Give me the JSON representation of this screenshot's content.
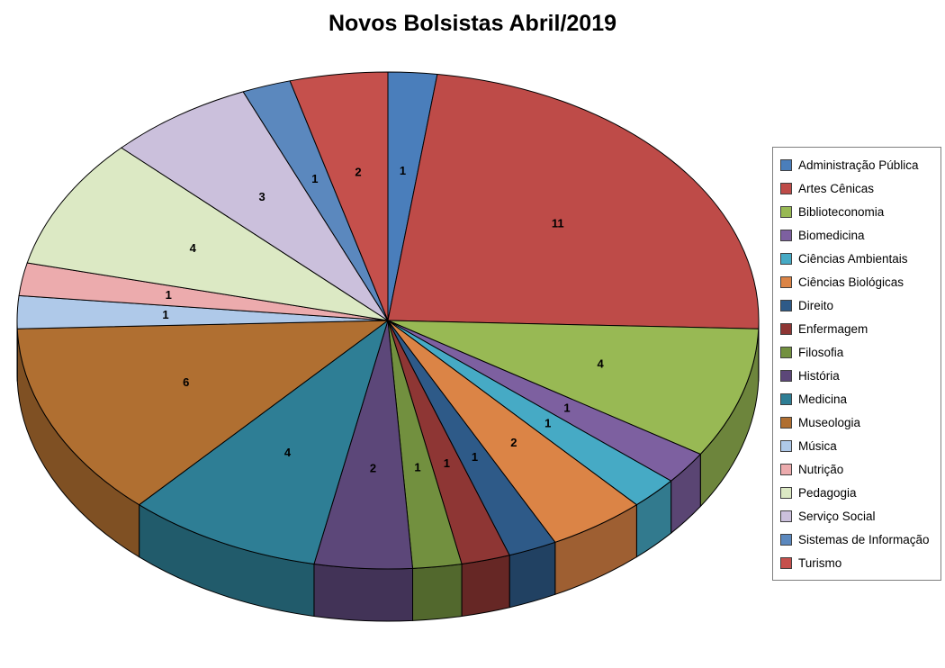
{
  "chart_data": {
    "type": "pie",
    "is_3d": true,
    "title": "Novos Bolsistas Abril/2019",
    "legend_position": "right",
    "start_angle_deg": 0,
    "direction": "clockwise",
    "data_labels": "value",
    "total": 47,
    "categories": [
      "Administração Pública",
      "Artes Cênicas",
      "Biblioteconomia",
      "Biomedicina",
      "Ciências Ambientais",
      "Ciências Biológicas",
      "Direito",
      "Enfermagem",
      "Filosofia",
      "História",
      "Medicina",
      "Museologia",
      "Música",
      "Nutrição",
      "Pedagogia",
      "Serviço Social",
      "Sistemas de Informação",
      "Turismo"
    ],
    "values": [
      1,
      11,
      4,
      1,
      1,
      2,
      1,
      1,
      1,
      2,
      4,
      6,
      1,
      1,
      4,
      3,
      1,
      2
    ],
    "colors": [
      "#4A7EBB",
      "#BE4B48",
      "#98B954",
      "#7D60A0",
      "#46AAC5",
      "#DB8446",
      "#2E5A88",
      "#8E3634",
      "#72903F",
      "#5C4779",
      "#2E7E95",
      "#B06F31",
      "#AFC9E9",
      "#ECABAD",
      "#DCE9C4",
      "#CBC0DC",
      "#5B88BE",
      "#C5504C"
    ],
    "label_color": "#000000",
    "outline_color": "#000000"
  }
}
